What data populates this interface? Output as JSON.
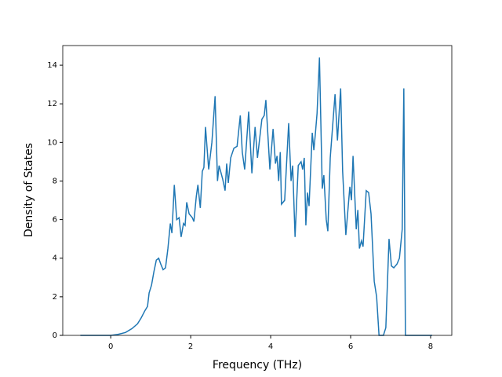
{
  "chart_data": {
    "type": "line",
    "xlabel": "Frequency (THz)",
    "ylabel": "Density of States",
    "color": "#1f77b4",
    "x": [
      -0.76,
      0,
      0.18,
      0.37,
      0.53,
      0.67,
      0.76,
      0.86,
      0.92,
      0.96,
      1.02,
      1.08,
      1.14,
      1.2,
      1.25,
      1.31,
      1.37,
      1.43,
      1.49,
      1.53,
      1.59,
      1.65,
      1.71,
      1.76,
      1.82,
      1.86,
      1.9,
      1.96,
      2.04,
      2.08,
      2.14,
      2.18,
      2.24,
      2.29,
      2.33,
      2.37,
      2.45,
      2.53,
      2.61,
      2.67,
      2.71,
      2.8,
      2.86,
      2.9,
      2.94,
      3.0,
      3.08,
      3.16,
      3.24,
      3.29,
      3.35,
      3.45,
      3.53,
      3.61,
      3.67,
      3.78,
      3.84,
      3.88,
      3.98,
      4.06,
      4.12,
      4.16,
      4.2,
      4.24,
      4.27,
      4.35,
      4.45,
      4.51,
      4.55,
      4.61,
      4.69,
      4.76,
      4.8,
      4.84,
      4.88,
      4.92,
      4.96,
      5.04,
      5.08,
      5.12,
      5.16,
      5.22,
      5.29,
      5.33,
      5.39,
      5.43,
      5.49,
      5.61,
      5.67,
      5.75,
      5.8,
      5.88,
      5.98,
      6.02,
      6.06,
      6.14,
      6.18,
      6.22,
      6.27,
      6.31,
      6.39,
      6.45,
      6.51,
      6.59,
      6.65,
      6.71,
      6.82,
      6.88,
      6.96,
      7.02,
      7.08,
      7.16,
      7.22,
      7.29,
      7.33,
      7.37,
      8.04
    ],
    "values": [
      0,
      0,
      0.05,
      0.15,
      0.35,
      0.6,
      0.9,
      1.3,
      1.5,
      2.2,
      2.6,
      3.3,
      3.9,
      4.0,
      3.7,
      3.4,
      3.5,
      4.5,
      5.8,
      5.3,
      7.8,
      6.0,
      6.1,
      5.1,
      5.8,
      5.7,
      6.9,
      6.3,
      6.1,
      5.9,
      7.2,
      7.8,
      6.6,
      8.5,
      8.7,
      10.8,
      8.6,
      10.0,
      12.4,
      8.0,
      8.8,
      8.1,
      7.5,
      8.9,
      7.9,
      9.2,
      9.7,
      9.8,
      11.4,
      9.5,
      8.6,
      11.6,
      8.4,
      10.8,
      9.2,
      11.2,
      11.4,
      12.2,
      8.6,
      10.7,
      8.9,
      9.3,
      8.0,
      9.5,
      6.8,
      7.0,
      11.0,
      8.0,
      8.8,
      5.1,
      8.8,
      9.0,
      8.6,
      9.2,
      5.7,
      7.4,
      6.7,
      10.5,
      9.6,
      10.5,
      11.5,
      14.4,
      7.6,
      8.3,
      6.0,
      5.4,
      9.2,
      12.5,
      10.1,
      12.8,
      8.5,
      5.2,
      7.7,
      7.0,
      9.3,
      5.5,
      6.5,
      4.5,
      4.9,
      4.6,
      7.5,
      7.4,
      6.3,
      2.8,
      2.0,
      0,
      0,
      0.4,
      5.0,
      3.6,
      3.5,
      3.7,
      4.0,
      5.5,
      12.8,
      0,
      0
    ],
    "xlim": [
      -1.2,
      8.53
    ],
    "ylim": [
      0,
      15.02
    ],
    "xticks": [
      0,
      2,
      4,
      6,
      8
    ],
    "yticks": [
      0,
      2,
      4,
      6,
      8,
      10,
      12,
      14
    ]
  }
}
